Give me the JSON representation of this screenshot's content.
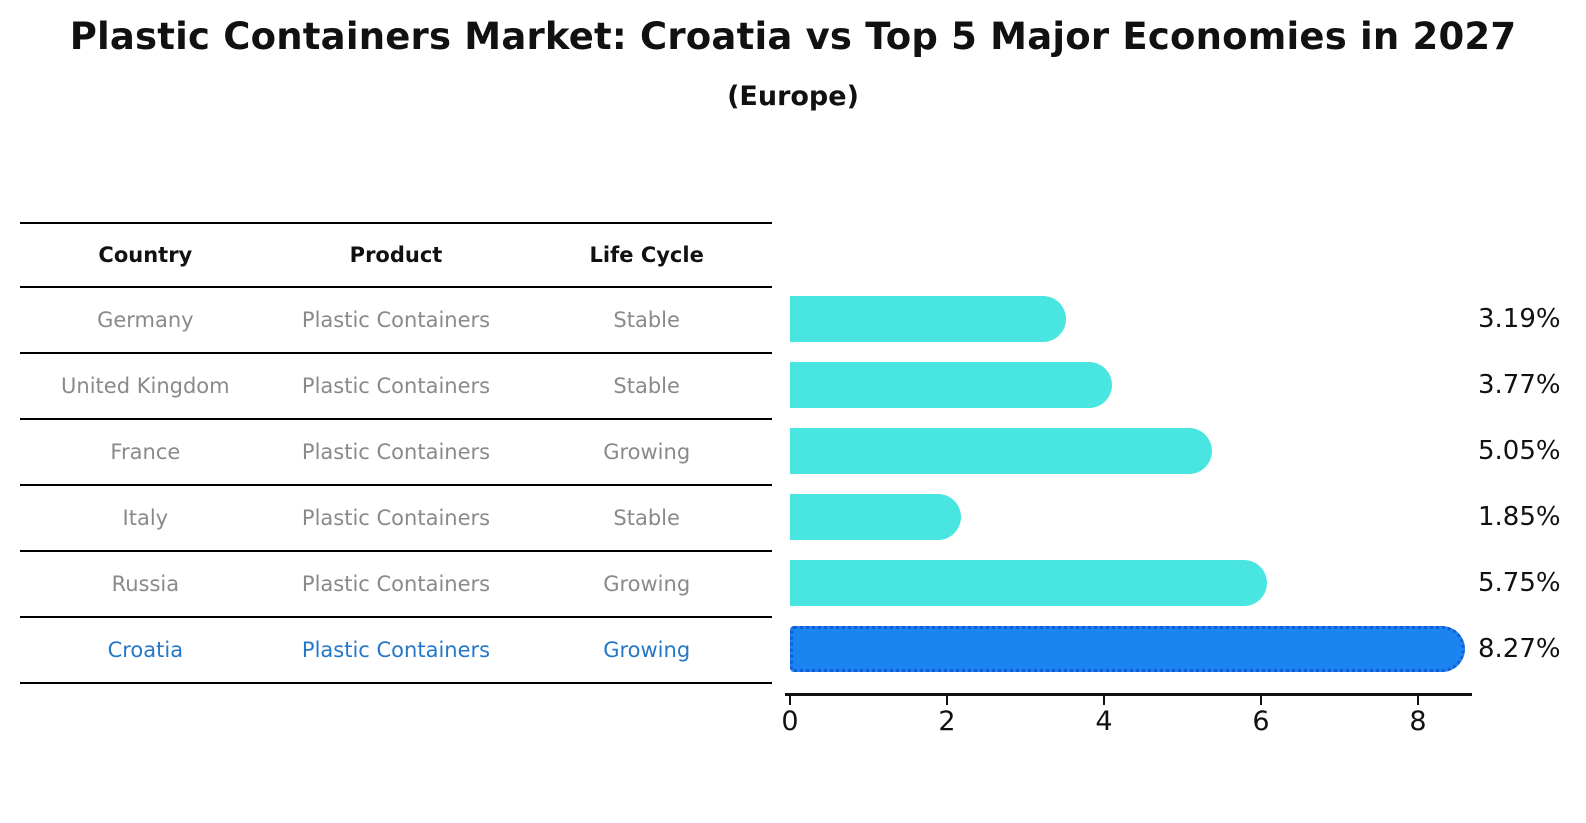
{
  "title": "Plastic Containers Market: Croatia vs Top 5 Major Economies in 2027",
  "subtitle": "(Europe)",
  "table": {
    "headers": [
      "Country",
      "Product",
      "Life Cycle"
    ],
    "rows": [
      {
        "country": "Germany",
        "product": "Plastic Containers",
        "life_cycle": "Stable",
        "highlight": false
      },
      {
        "country": "United Kingdom",
        "product": "Plastic Containers",
        "life_cycle": "Stable",
        "highlight": false
      },
      {
        "country": "France",
        "product": "Plastic Containers",
        "life_cycle": "Growing",
        "highlight": false
      },
      {
        "country": "Italy",
        "product": "Plastic Containers",
        "life_cycle": "Stable",
        "highlight": false
      },
      {
        "country": "Russia",
        "product": "Plastic Containers",
        "life_cycle": "Growing",
        "highlight": false
      },
      {
        "country": "Croatia",
        "product": "Plastic Containers",
        "life_cycle": "Growing",
        "highlight": true
      }
    ]
  },
  "chart_data": {
    "type": "bar",
    "orientation": "horizontal",
    "title": "Plastic Containers Market: Croatia vs Top 5 Major Economies in 2027",
    "subtitle": "(Europe)",
    "categories": [
      "Germany",
      "United Kingdom",
      "France",
      "Italy",
      "Russia",
      "Croatia"
    ],
    "values": [
      3.19,
      3.77,
      5.05,
      1.85,
      5.75,
      8.27
    ],
    "value_labels": [
      "3.19%",
      "3.77%",
      "5.05%",
      "1.85%",
      "5.75%",
      "8.27%"
    ],
    "unit": "%",
    "xticks": [
      0,
      2,
      4,
      6,
      8
    ],
    "xlim": [
      0,
      8.75
    ],
    "grid": false,
    "legend": "none",
    "highlight_index": 5,
    "colors": {
      "bar": "#48E5E1",
      "highlight_bar": "#1B84F0",
      "highlight_border": "#0E5FD8",
      "highlight_text": "#2478C8",
      "row_text": "#8A8A8A",
      "header_text": "#111111",
      "axis": "#111111",
      "value_label_text": "#111111"
    }
  }
}
